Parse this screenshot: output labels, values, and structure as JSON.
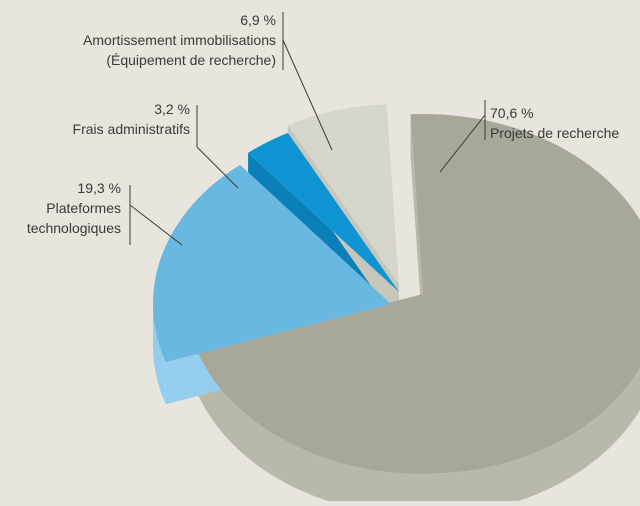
{
  "chart_data": {
    "type": "pie",
    "style": "3d-exploded",
    "title": "",
    "slices": [
      {
        "label_lines": [
          "Projets de recherche"
        ],
        "value_label": "70,6 %",
        "value": 70.6,
        "color": "#a7a899",
        "side_color": "#b8b9ab"
      },
      {
        "label_lines": [
          "Plateformes",
          "technologiques"
        ],
        "value_label": "19,3 %",
        "value": 19.3,
        "color": "#68b8e2",
        "side_color": "#94cdee"
      },
      {
        "label_lines": [
          "Frais administratifs"
        ],
        "value_label": "3,2 %",
        "value": 3.2,
        "color": "#0e94d2",
        "side_color": "#0a7fb8"
      },
      {
        "label_lines": [
          "Amortissement immobilisations",
          "(Équipement de recherche)"
        ],
        "value_label": "6,9 %",
        "value": 6.9,
        "color": "#d6d6cc",
        "side_color": "#c6c6bb"
      }
    ]
  }
}
